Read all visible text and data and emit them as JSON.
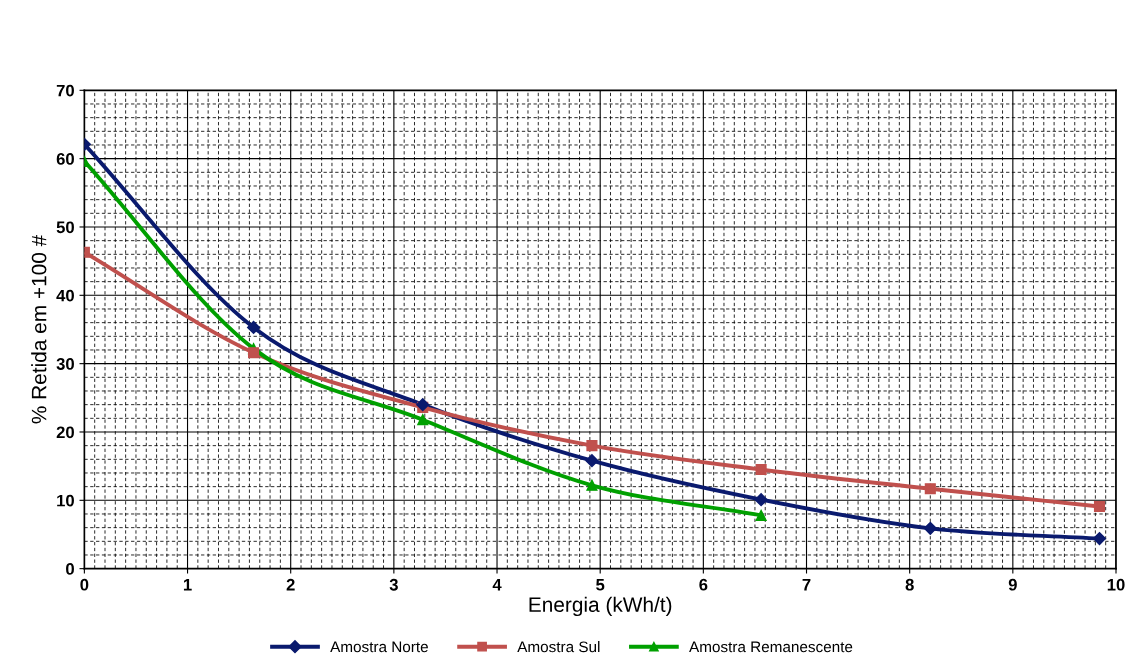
{
  "chart_data": {
    "type": "line",
    "xlabel": "Energia (kWh/t)",
    "ylabel": "% Retida em +100 #",
    "xlim": [
      0,
      10
    ],
    "xticks": [
      0,
      1,
      2,
      3,
      4,
      5,
      6,
      7,
      8,
      9,
      10
    ],
    "ylim": [
      0,
      70
    ],
    "yticks": [
      0,
      10,
      20,
      30,
      40,
      50,
      60,
      70
    ],
    "grid": true,
    "legend": "bottom",
    "line_style": "solid",
    "series": [
      {
        "name": "Amostra Norte",
        "color": "#0a1a6e",
        "marker": "diamond",
        "x": [
          0,
          1.64,
          3.28,
          4.92,
          6.56,
          8.2,
          9.84
        ],
        "values": [
          62.1,
          35.3,
          24.0,
          15.8,
          10.1,
          5.9,
          4.4
        ]
      },
      {
        "name": "Amostra Sul",
        "color": "#c0504d",
        "marker": "square",
        "x": [
          0,
          1.64,
          3.28,
          4.92,
          6.56,
          8.2,
          9.84
        ],
        "values": [
          46.3,
          31.6,
          23.6,
          18.0,
          14.5,
          11.7,
          9.1
        ]
      },
      {
        "name": "Amostra Remanescente",
        "color": "#00a000",
        "marker": "triangle",
        "x": [
          0,
          1.64,
          3.28,
          4.92,
          6.56
        ],
        "values": [
          59.6,
          32.2,
          21.8,
          12.2,
          7.8
        ]
      }
    ]
  }
}
